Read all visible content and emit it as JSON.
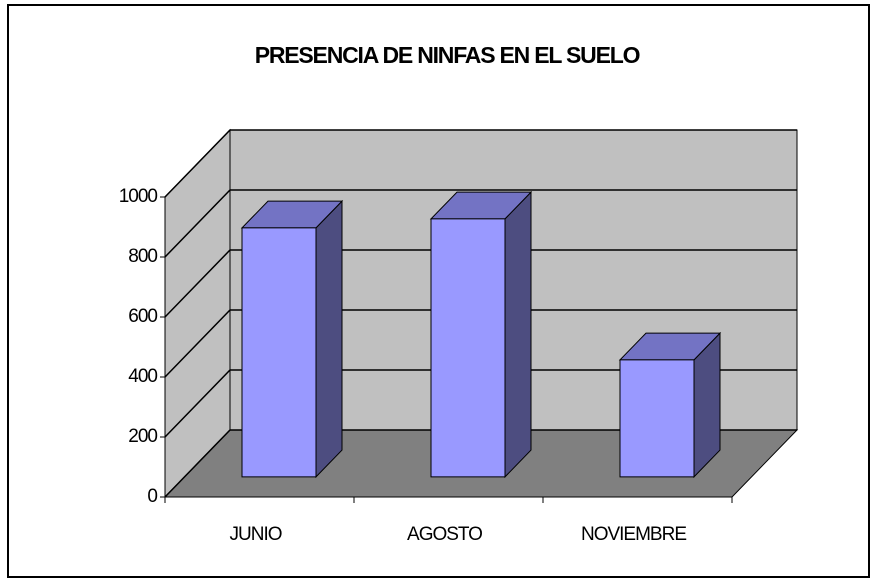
{
  "chart_data": {
    "type": "bar3d",
    "title": "PRESENCIA DE NINFAS EN EL SUELO",
    "categories": [
      "JUNIO",
      "AGOSTO",
      "NOVIEMBRE"
    ],
    "values": [
      830,
      860,
      390
    ],
    "color": "#9999ff",
    "ylim": [
      0,
      1000
    ],
    "yticks": [
      0,
      200,
      400,
      600,
      800,
      1000
    ],
    "grid": true
  }
}
